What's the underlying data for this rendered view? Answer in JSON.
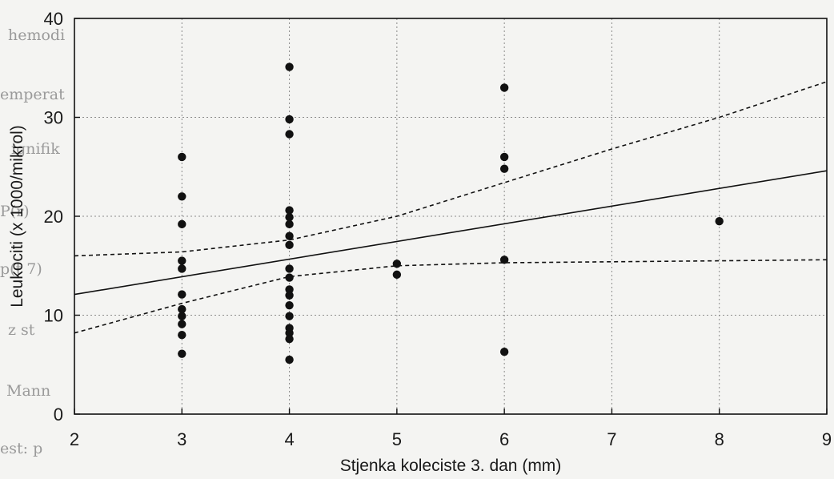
{
  "background_bleed_text": [
    "hemodi",
    "emperat",
    "ignifik",
    "P(r)",
    "p(t 7)",
    "z st",
    "Mann",
    "est: p"
  ],
  "chart_data": {
    "type": "scatter",
    "title": "",
    "xlabel": "Stjenka koleciste 3. dan (mm)",
    "ylabel": "Leukociti (x 1000/mikrol)",
    "xlim": [
      2,
      9
    ],
    "ylim": [
      0,
      40
    ],
    "xticks": [
      "2",
      "3",
      "4",
      "5",
      "6",
      "7",
      "8",
      "9"
    ],
    "yticks": [
      "0",
      "10",
      "20",
      "30",
      "40"
    ],
    "grid": true,
    "points": [
      {
        "x": 3,
        "y": 26
      },
      {
        "x": 3,
        "y": 22
      },
      {
        "x": 3,
        "y": 19.2
      },
      {
        "x": 3,
        "y": 15.5
      },
      {
        "x": 3,
        "y": 14.7
      },
      {
        "x": 3,
        "y": 12.1
      },
      {
        "x": 3,
        "y": 10.6
      },
      {
        "x": 3,
        "y": 9.9
      },
      {
        "x": 3,
        "y": 9.1
      },
      {
        "x": 3,
        "y": 8
      },
      {
        "x": 3,
        "y": 6.1
      },
      {
        "x": 4,
        "y": 35.1
      },
      {
        "x": 4,
        "y": 29.8
      },
      {
        "x": 4,
        "y": 28.3
      },
      {
        "x": 4,
        "y": 20.6
      },
      {
        "x": 4,
        "y": 19.9
      },
      {
        "x": 4,
        "y": 19.2
      },
      {
        "x": 4,
        "y": 18
      },
      {
        "x": 4,
        "y": 17.1
      },
      {
        "x": 4,
        "y": 14.7
      },
      {
        "x": 4,
        "y": 13.8
      },
      {
        "x": 4,
        "y": 12.6
      },
      {
        "x": 4,
        "y": 12
      },
      {
        "x": 4,
        "y": 11
      },
      {
        "x": 4,
        "y": 9.9
      },
      {
        "x": 4,
        "y": 8.7
      },
      {
        "x": 4,
        "y": 8.2
      },
      {
        "x": 4,
        "y": 7.6
      },
      {
        "x": 4,
        "y": 5.5
      },
      {
        "x": 5,
        "y": 15.2
      },
      {
        "x": 5,
        "y": 14.1
      },
      {
        "x": 6,
        "y": 33
      },
      {
        "x": 6,
        "y": 26
      },
      {
        "x": 6,
        "y": 24.8
      },
      {
        "x": 6,
        "y": 15.6
      },
      {
        "x": 6,
        "y": 6.3
      },
      {
        "x": 8,
        "y": 19.5
      }
    ],
    "regression_line": [
      {
        "x": 2,
        "y": 12.1
      },
      {
        "x": 9,
        "y": 24.6
      }
    ],
    "confidence_band_upper": [
      {
        "x": 2,
        "y": 16
      },
      {
        "x": 3,
        "y": 16.4
      },
      {
        "x": 4,
        "y": 17.6
      },
      {
        "x": 5,
        "y": 20
      },
      {
        "x": 6,
        "y": 23.4
      },
      {
        "x": 7,
        "y": 26.8
      },
      {
        "x": 8,
        "y": 30
      },
      {
        "x": 9,
        "y": 33.6
      }
    ],
    "confidence_band_lower": [
      {
        "x": 2,
        "y": 8.2
      },
      {
        "x": 3,
        "y": 11.2
      },
      {
        "x": 4,
        "y": 13.9
      },
      {
        "x": 5,
        "y": 15
      },
      {
        "x": 6,
        "y": 15.3
      },
      {
        "x": 7,
        "y": 15.4
      },
      {
        "x": 8,
        "y": 15.5
      },
      {
        "x": 9,
        "y": 15.6
      }
    ],
    "colors": {
      "marker": "#111111",
      "line": "#111111",
      "grid": "#8a8a8a",
      "axis": "#111111"
    }
  }
}
